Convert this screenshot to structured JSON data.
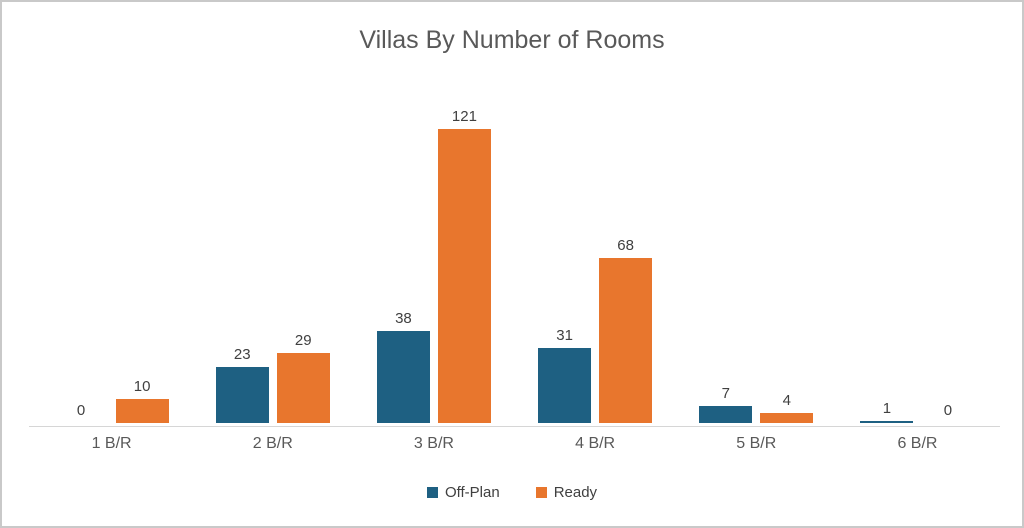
{
  "chart_data": {
    "type": "bar",
    "title": "Villas By Number of Rooms",
    "categories": [
      "1 B/R",
      "2 B/R",
      "3 B/R",
      "4 B/R",
      "5 B/R",
      "6 B/R"
    ],
    "series": [
      {
        "name": "Off-Plan",
        "color": "#1E6082",
        "values": [
          0,
          23,
          38,
          31,
          7,
          1
        ]
      },
      {
        "name": "Ready",
        "color": "#E8762D",
        "values": [
          10,
          29,
          121,
          68,
          4,
          0
        ]
      }
    ],
    "ylim": [
      0,
      121
    ],
    "grid": false,
    "data_labels": true,
    "legend_position": "bottom"
  }
}
